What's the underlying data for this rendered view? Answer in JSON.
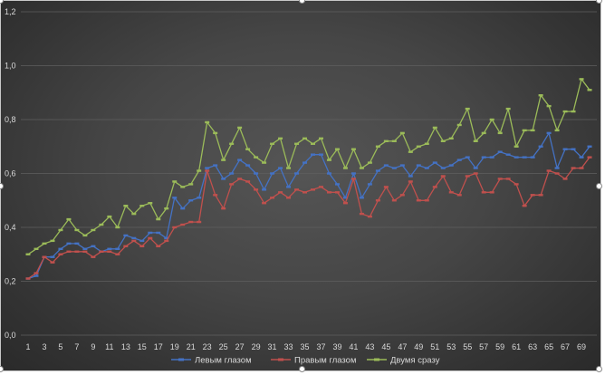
{
  "chart_data": {
    "type": "line",
    "title": "",
    "xlabel": "",
    "ylabel": "",
    "ylim": [
      0,
      1.2
    ],
    "yticks": [
      "0,0",
      "0,2",
      "0,4",
      "0,6",
      "0,8",
      "1,0",
      "1,2"
    ],
    "x": [
      1,
      2,
      3,
      4,
      5,
      6,
      7,
      8,
      9,
      10,
      11,
      12,
      13,
      14,
      15,
      16,
      17,
      18,
      19,
      20,
      21,
      22,
      23,
      24,
      25,
      26,
      27,
      28,
      29,
      30,
      31,
      32,
      33,
      34,
      35,
      36,
      37,
      38,
      39,
      40,
      41,
      42,
      43,
      44,
      45,
      46,
      47,
      48,
      49,
      50,
      51,
      52,
      53,
      54,
      55,
      56,
      57,
      58,
      59,
      60,
      61,
      62,
      63,
      64,
      65,
      66,
      67,
      68,
      69,
      70
    ],
    "xtick_labels": [
      "1",
      "3",
      "5",
      "7",
      "9",
      "11",
      "13",
      "15",
      "17",
      "19",
      "21",
      "23",
      "25",
      "27",
      "29",
      "31",
      "33",
      "35",
      "37",
      "39",
      "41",
      "43",
      "45",
      "47",
      "49",
      "51",
      "53",
      "55",
      "57",
      "59",
      "61",
      "63",
      "65",
      "67",
      "69"
    ],
    "grid": true,
    "legend_position": "bottom",
    "series": [
      {
        "name": "Левым глазом",
        "color": "#4472c4",
        "values": [
          0.21,
          0.22,
          0.29,
          0.29,
          0.32,
          0.34,
          0.34,
          0.32,
          0.33,
          0.31,
          0.32,
          0.32,
          0.37,
          0.36,
          0.35,
          0.38,
          0.38,
          0.36,
          0.51,
          0.47,
          0.5,
          0.51,
          0.62,
          0.63,
          0.58,
          0.6,
          0.65,
          0.63,
          0.6,
          0.54,
          0.6,
          0.62,
          0.55,
          0.6,
          0.64,
          0.67,
          0.67,
          0.6,
          0.56,
          0.51,
          0.6,
          0.51,
          0.56,
          0.61,
          0.63,
          0.62,
          0.63,
          0.59,
          0.63,
          0.62,
          0.64,
          0.62,
          0.63,
          0.65,
          0.66,
          0.62,
          0.66,
          0.66,
          0.68,
          0.67,
          0.66,
          0.66,
          0.66,
          0.7,
          0.75,
          0.62,
          0.69,
          0.69,
          0.66,
          0.7
        ]
      },
      {
        "name": "Правым глазом",
        "color": "#c0504d",
        "values": [
          0.21,
          0.23,
          0.29,
          0.27,
          0.3,
          0.31,
          0.31,
          0.31,
          0.29,
          0.31,
          0.31,
          0.3,
          0.33,
          0.35,
          0.33,
          0.36,
          0.33,
          0.35,
          0.4,
          0.41,
          0.42,
          0.42,
          0.61,
          0.52,
          0.47,
          0.56,
          0.58,
          0.57,
          0.54,
          0.49,
          0.51,
          0.53,
          0.51,
          0.54,
          0.53,
          0.54,
          0.55,
          0.53,
          0.53,
          0.49,
          0.58,
          0.45,
          0.44,
          0.5,
          0.55,
          0.5,
          0.52,
          0.57,
          0.5,
          0.5,
          0.55,
          0.59,
          0.53,
          0.52,
          0.59,
          0.6,
          0.53,
          0.53,
          0.58,
          0.58,
          0.56,
          0.48,
          0.52,
          0.52,
          0.61,
          0.6,
          0.58,
          0.62,
          0.62,
          0.66
        ]
      },
      {
        "name": "Двумя сразу",
        "color": "#9bbb59",
        "values": [
          0.3,
          0.32,
          0.34,
          0.35,
          0.39,
          0.43,
          0.39,
          0.37,
          0.39,
          0.41,
          0.44,
          0.4,
          0.48,
          0.45,
          0.48,
          0.49,
          0.43,
          0.47,
          0.57,
          0.55,
          0.56,
          0.61,
          0.79,
          0.75,
          0.65,
          0.71,
          0.77,
          0.69,
          0.66,
          0.64,
          0.71,
          0.73,
          0.62,
          0.71,
          0.73,
          0.71,
          0.73,
          0.65,
          0.69,
          0.62,
          0.69,
          0.62,
          0.64,
          0.7,
          0.72,
          0.72,
          0.75,
          0.68,
          0.7,
          0.71,
          0.77,
          0.72,
          0.73,
          0.78,
          0.84,
          0.72,
          0.75,
          0.8,
          0.75,
          0.84,
          0.7,
          0.76,
          0.76,
          0.89,
          0.85,
          0.76,
          0.83,
          0.83,
          0.95,
          0.91
        ]
      }
    ]
  }
}
